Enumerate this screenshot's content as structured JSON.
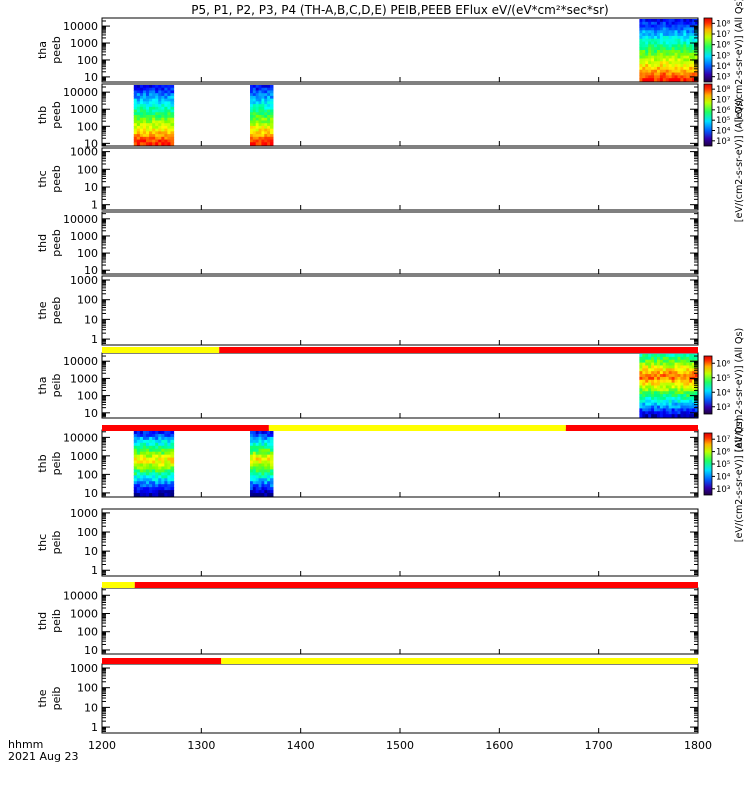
{
  "chart_data": {
    "type": "heatmap",
    "title": "P5, P1, P2, P3, P4 (TH-A,B,C,D,E) PEIB,PEEB EFlux eV/(eV*cm²*sec*sr)",
    "x_axis": {
      "range": [
        1200,
        1800
      ],
      "ticks": [
        "1200",
        "1300",
        "1400",
        "1500",
        "1600",
        "1700",
        "1800"
      ],
      "label": "hhmm",
      "date": "2021 Aug 23"
    },
    "panels": [
      {
        "name": "tha peeb",
        "label1": "tha",
        "label2": "peeb",
        "y_ticks": [
          "10",
          "100",
          "1000",
          "10000"
        ],
        "ylim": [
          5,
          30000
        ],
        "scale": "log",
        "data_spans": [
          [
            1741,
            1800
          ]
        ],
        "colorbar": "electron"
      },
      {
        "name": "thb peeb",
        "label1": "thb",
        "label2": "peeb",
        "y_ticks": [
          "10",
          "100",
          "1000",
          "10000"
        ],
        "ylim": [
          7,
          30000
        ],
        "scale": "log",
        "data_spans": [
          [
            1232,
            1272
          ],
          [
            1349,
            1372
          ]
        ],
        "colorbar": "electron"
      },
      {
        "name": "thc peeb",
        "label1": "thc",
        "label2": "peeb",
        "y_ticks": [
          "1",
          "10",
          "100",
          "1000"
        ],
        "ylim": [
          0.5,
          1600
        ],
        "scale": "log",
        "data_spans": []
      },
      {
        "name": "thd peeb",
        "label1": "thd",
        "label2": "peeb",
        "y_ticks": [
          "10",
          "100",
          "1000",
          "10000"
        ],
        "ylim": [
          6,
          25000
        ],
        "scale": "log",
        "data_spans": []
      },
      {
        "name": "the peeb",
        "label1": "the",
        "label2": "peeb",
        "y_ticks": [
          "1",
          "10",
          "100",
          "1000"
        ],
        "ylim": [
          0.5,
          1600
        ],
        "scale": "log",
        "data_spans": []
      },
      {
        "name": "tha peib",
        "label1": "tha",
        "label2": "peib",
        "y_ticks": [
          "10",
          "100",
          "1000",
          "10000"
        ],
        "ylim": [
          5,
          30000
        ],
        "scale": "log",
        "data_spans": [
          [
            1741,
            1800
          ]
        ],
        "colorbar": "ion"
      },
      {
        "name": "thb peib",
        "label1": "thb",
        "label2": "peib",
        "y_ticks": [
          "10",
          "100",
          "1000",
          "10000"
        ],
        "ylim": [
          6,
          25000
        ],
        "scale": "log",
        "data_spans": [
          [
            1232,
            1272
          ],
          [
            1349,
            1372
          ]
        ],
        "colorbar": "ion"
      },
      {
        "name": "thc peib",
        "label1": "thc",
        "label2": "peib",
        "y_ticks": [
          "1",
          "10",
          "100",
          "1000"
        ],
        "ylim": [
          0.5,
          1600
        ],
        "scale": "log",
        "data_spans": []
      },
      {
        "name": "thd peib",
        "label1": "thd",
        "label2": "peib",
        "y_ticks": [
          "10",
          "100",
          "1000",
          "10000"
        ],
        "ylim": [
          6,
          25000
        ],
        "scale": "log",
        "data_spans": []
      },
      {
        "name": "the peib",
        "label1": "the",
        "label2": "peib",
        "y_ticks": [
          "1",
          "10",
          "100",
          "1000"
        ],
        "ylim": [
          0.5,
          1600
        ],
        "scale": "log",
        "data_spans": []
      }
    ],
    "mode_bars": [
      {
        "after_panel": 4,
        "segments": [
          {
            "from": 1200,
            "to": 1318,
            "color": "#ffff00"
          },
          {
            "from": 1318,
            "to": 1800,
            "color": "#ff0000"
          }
        ]
      },
      {
        "after_panel": 5,
        "segments": [
          {
            "from": 1200,
            "to": 1368,
            "color": "#ff0000"
          },
          {
            "from": 1368,
            "to": 1667,
            "color": "#ffff00"
          },
          {
            "from": 1667,
            "to": 1800,
            "color": "#ff0000"
          }
        ]
      },
      {
        "after_panel": 7,
        "segments": [
          {
            "from": 1200,
            "to": 1233,
            "color": "#ffff00"
          },
          {
            "from": 1233,
            "to": 1800,
            "color": "#ff0000"
          }
        ]
      },
      {
        "after_panel": 8,
        "segments": [
          {
            "from": 1200,
            "to": 1320,
            "color": "#ff0000"
          },
          {
            "from": 1320,
            "to": 1800,
            "color": "#ffff00"
          }
        ]
      }
    ],
    "colorbars": {
      "electron": {
        "ticks": [
          "10³",
          "10⁴",
          "10⁵",
          "10⁶",
          "10⁷",
          "10⁸"
        ],
        "label_top": "[eV/(cm2-s-sr-eV)] (All Qs)",
        "label_bottom": "[eV/(cm2-s-sr-eV)] (All Qs)"
      },
      "ion": {
        "ticks_top": [
          "10³",
          "10⁴",
          "10⁵",
          "10⁶"
        ],
        "ticks_bottom": [
          "10³",
          "10⁴",
          "10⁵",
          "10⁶",
          "10⁷"
        ],
        "label_top": "[eV/(cm2-s-sr-eV)] (All Qs)",
        "label_bottom": "[eV/(cm2-s-sr-eV)] (All Qs)"
      }
    },
    "colors": [
      "#000080",
      "#0000ff",
      "#0080ff",
      "#00ffff",
      "#00ff80",
      "#80ff00",
      "#ffff00",
      "#ff8000",
      "#ff0000"
    ]
  }
}
